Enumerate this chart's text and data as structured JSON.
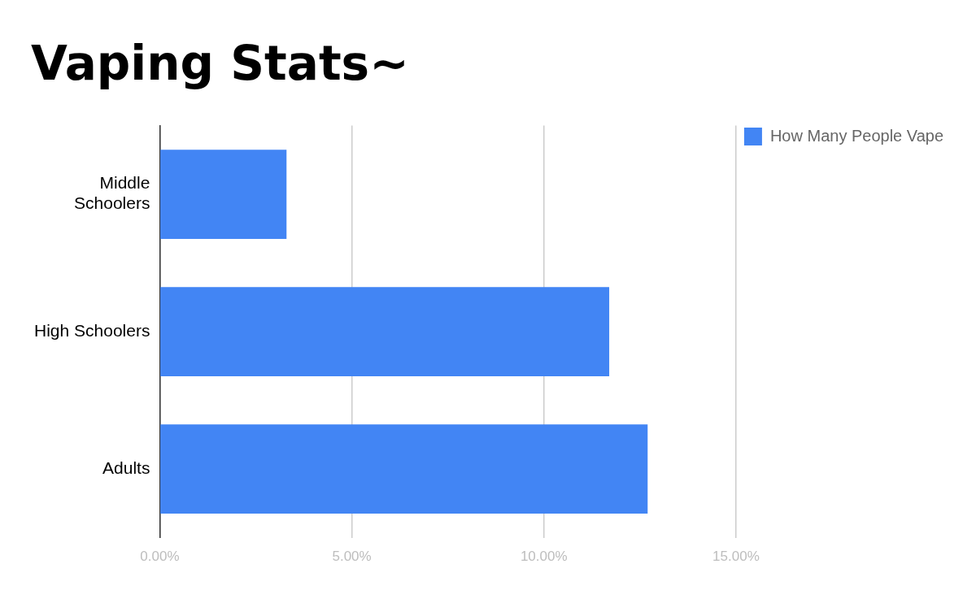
{
  "chart_data": {
    "type": "bar",
    "title": "Vaping Stats~",
    "orientation": "horizontal",
    "categories": [
      "Middle Schoolers",
      "High Schoolers",
      "Adults"
    ],
    "series": [
      {
        "name": "How Many People Vape",
        "color": "#4285f4",
        "values": [
          3.3,
          11.7,
          12.7
        ]
      }
    ],
    "xlim": [
      0,
      15
    ],
    "xticks": [
      {
        "value": 0,
        "label": "0.00%"
      },
      {
        "value": 5,
        "label": "5.00%"
      },
      {
        "value": 10,
        "label": "10.00%"
      },
      {
        "value": 15,
        "label": "15.00%"
      }
    ],
    "grid": "x",
    "legend": "top right"
  }
}
